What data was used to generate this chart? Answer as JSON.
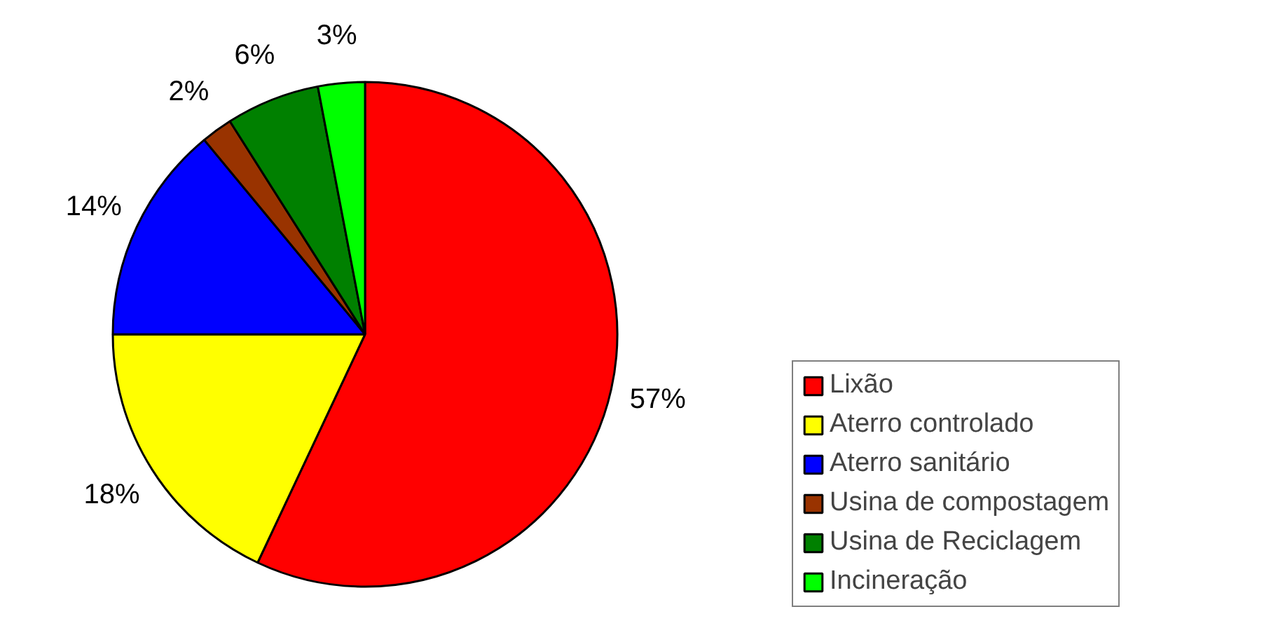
{
  "chart_data": {
    "type": "pie",
    "categories": [
      "Lixão",
      "Aterro controlado",
      "Aterro sanitário",
      "Usina de compostagem",
      "Usina de Reciclagem",
      "Incineração"
    ],
    "values": [
      57,
      18,
      14,
      2,
      6,
      3
    ],
    "colors": [
      "#ff0000",
      "#ffff00",
      "#0000ff",
      "#993300",
      "#008000",
      "#00ff00"
    ],
    "value_labels": [
      "57%",
      "18%",
      "14%",
      "2%",
      "6%",
      "3%"
    ],
    "legend": "right"
  }
}
